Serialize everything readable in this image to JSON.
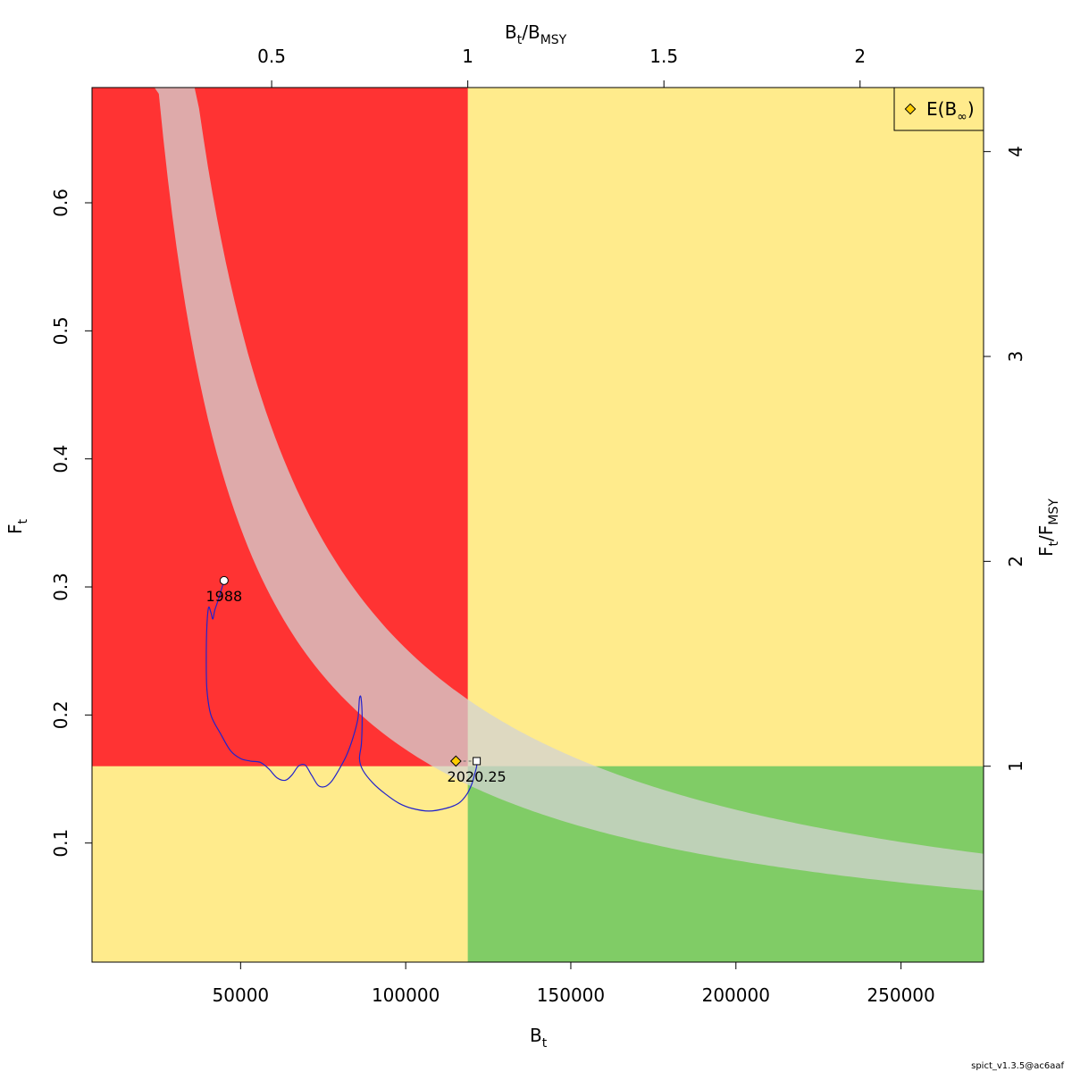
{
  "chart_data": {
    "type": "line",
    "title": "",
    "xlabel": {
      "main": "B",
      "sub": "t"
    },
    "ylabel": {
      "main": "F",
      "sub": "t"
    },
    "top_label": {
      "main": "B",
      "sub1": "t",
      "sep": "/B",
      "sub2": "MSY"
    },
    "right_label": {
      "main": "F",
      "sub1": "t",
      "sep": "/F",
      "sub2": "MSY"
    },
    "xlim": [
      5000,
      275000
    ],
    "ylim": [
      0.007,
      0.69
    ],
    "bmsy": 118800,
    "fmsy": 0.16,
    "x_ticks": [
      "50000",
      "100000",
      "150000",
      "200000",
      "250000"
    ],
    "y_ticks": [
      "0.1",
      "0.2",
      "0.3",
      "0.4",
      "0.5",
      "0.6"
    ],
    "top_ticks": [
      "0.5",
      "1",
      "1.5",
      "2"
    ],
    "right_ticks": [
      "1",
      "2",
      "3",
      "4"
    ],
    "regions": {
      "overfished_overfishing": "#ff3333",
      "caution": "#ffeb8c",
      "sustainable": "#80cc66"
    },
    "msy_band": {
      "color": "#d3d3d3",
      "opacity": 0.75,
      "catch_upper": 25200,
      "catch_lower": 17300
    },
    "trajectory": {
      "name": "B/F trajectory",
      "color": "#2222cc",
      "points": [
        [
          45000,
          0.305
        ],
        [
          43500,
          0.292
        ],
        [
          42200,
          0.282
        ],
        [
          41600,
          0.275
        ],
        [
          41000,
          0.28
        ],
        [
          40300,
          0.284
        ],
        [
          39800,
          0.27
        ],
        [
          39600,
          0.245
        ],
        [
          39800,
          0.22
        ],
        [
          41000,
          0.2
        ],
        [
          44000,
          0.185
        ],
        [
          47000,
          0.172
        ],
        [
          50000,
          0.166
        ],
        [
          53000,
          0.164
        ],
        [
          56000,
          0.163
        ],
        [
          58500,
          0.158
        ],
        [
          61000,
          0.151
        ],
        [
          63500,
          0.149
        ],
        [
          65500,
          0.153
        ],
        [
          67500,
          0.16
        ],
        [
          69500,
          0.161
        ],
        [
          71500,
          0.153
        ],
        [
          73500,
          0.145
        ],
        [
          75500,
          0.144
        ],
        [
          77500,
          0.148
        ],
        [
          79500,
          0.156
        ],
        [
          82000,
          0.168
        ],
        [
          84000,
          0.182
        ],
        [
          85500,
          0.197
        ],
        [
          86000,
          0.213
        ],
        [
          86500,
          0.213
        ],
        [
          86800,
          0.198
        ],
        [
          86600,
          0.178
        ],
        [
          86000,
          0.166
        ],
        [
          87000,
          0.157
        ],
        [
          90000,
          0.147
        ],
        [
          94000,
          0.138
        ],
        [
          98000,
          0.131
        ],
        [
          102000,
          0.127
        ],
        [
          107000,
          0.125
        ],
        [
          112000,
          0.127
        ],
        [
          116000,
          0.131
        ],
        [
          118500,
          0.138
        ],
        [
          120000,
          0.146
        ],
        [
          121000,
          0.155
        ],
        [
          121500,
          0.16
        ],
        [
          121500,
          0.164
        ]
      ]
    },
    "projection": {
      "from": [
        121500,
        0.164
      ],
      "to": [
        115200,
        0.164
      ]
    },
    "markers": [
      {
        "name": "start",
        "shape": "circle",
        "x": 45000,
        "y": 0.305,
        "label": "1988",
        "color": "#ffffff"
      },
      {
        "name": "end",
        "shape": "square",
        "x": 121500,
        "y": 0.164,
        "label": "2020.25",
        "color": "#ffffff"
      },
      {
        "name": "equilibrium",
        "shape": "diamond",
        "x": 115200,
        "y": 0.164,
        "label": "",
        "color": "#ffcc00"
      }
    ],
    "legend": {
      "position": "top-right",
      "label_main": "E(B",
      "label_sub": "∞",
      "label_end": ")",
      "marker_color": "#ffcc00"
    }
  },
  "footer": "spict_v1.3.5@ac6aaf"
}
